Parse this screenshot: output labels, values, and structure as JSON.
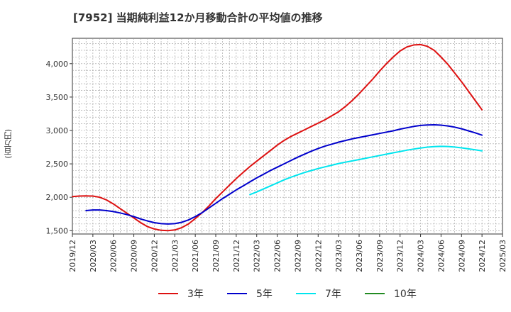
{
  "chart_data": {
    "type": "line",
    "title": "[7952]  当期純利益12か月移動合計の平均値の推移",
    "ylabel": "(百万円)",
    "xlabel": "",
    "ylim": [
      1450,
      4380
    ],
    "yticks": [
      1500,
      2000,
      2500,
      3000,
      3500,
      4000
    ],
    "ytick_labels": [
      "1,500",
      "2,000",
      "2,500",
      "3,000",
      "3,500",
      "4,000"
    ],
    "xlim": [
      "2019-12",
      "2025-03"
    ],
    "xtick_labels": [
      "2019/12",
      "2020/03",
      "2020/06",
      "2020/09",
      "2020/12",
      "2021/03",
      "2021/06",
      "2021/09",
      "2021/12",
      "2022/03",
      "2022/06",
      "2022/09",
      "2022/12",
      "2023/03",
      "2023/06",
      "2023/09",
      "2023/12",
      "2024/03",
      "2024/06",
      "2024/09",
      "2024/12",
      "2025/03"
    ],
    "grid": true,
    "legend_position": "bottom",
    "series": [
      {
        "name": "3年",
        "color": "#dd1111",
        "points": [
          [
            "2019-12",
            2010
          ],
          [
            "2020-01",
            2018
          ],
          [
            "2020-02",
            2020
          ],
          [
            "2020-03",
            2018
          ],
          [
            "2020-04",
            2000
          ],
          [
            "2020-05",
            1960
          ],
          [
            "2020-06",
            1900
          ],
          [
            "2020-07",
            1830
          ],
          [
            "2020-08",
            1760
          ],
          [
            "2020-09",
            1690
          ],
          [
            "2020-10",
            1620
          ],
          [
            "2020-11",
            1560
          ],
          [
            "2020-12",
            1525
          ],
          [
            "2021-01",
            1505
          ],
          [
            "2021-02",
            1500
          ],
          [
            "2021-03",
            1510
          ],
          [
            "2021-04",
            1545
          ],
          [
            "2021-05",
            1600
          ],
          [
            "2021-06",
            1680
          ],
          [
            "2021-07",
            1770
          ],
          [
            "2021-08",
            1870
          ],
          [
            "2021-09",
            1980
          ],
          [
            "2021-10",
            2080
          ],
          [
            "2021-11",
            2180
          ],
          [
            "2021-12",
            2280
          ],
          [
            "2022-01",
            2370
          ],
          [
            "2022-02",
            2460
          ],
          [
            "2022-03",
            2540
          ],
          [
            "2022-04",
            2620
          ],
          [
            "2022-05",
            2700
          ],
          [
            "2022-06",
            2780
          ],
          [
            "2022-07",
            2850
          ],
          [
            "2022-08",
            2910
          ],
          [
            "2022-09",
            2960
          ],
          [
            "2022-10",
            3010
          ],
          [
            "2022-11",
            3060
          ],
          [
            "2022-12",
            3110
          ],
          [
            "2023-01",
            3160
          ],
          [
            "2023-02",
            3220
          ],
          [
            "2023-03",
            3280
          ],
          [
            "2023-04",
            3360
          ],
          [
            "2023-05",
            3450
          ],
          [
            "2023-06",
            3550
          ],
          [
            "2023-07",
            3660
          ],
          [
            "2023-08",
            3770
          ],
          [
            "2023-09",
            3890
          ],
          [
            "2023-10",
            4000
          ],
          [
            "2023-11",
            4100
          ],
          [
            "2023-12",
            4190
          ],
          [
            "2024-01",
            4250
          ],
          [
            "2024-02",
            4280
          ],
          [
            "2024-03",
            4285
          ],
          [
            "2024-04",
            4260
          ],
          [
            "2024-05",
            4200
          ],
          [
            "2024-06",
            4100
          ],
          [
            "2024-07",
            3990
          ],
          [
            "2024-08",
            3860
          ],
          [
            "2024-09",
            3730
          ],
          [
            "2024-10",
            3590
          ],
          [
            "2024-11",
            3450
          ],
          [
            "2024-12",
            3310
          ]
        ]
      },
      {
        "name": "5年",
        "color": "#0000cc",
        "points": [
          [
            "2020-02",
            1800
          ],
          [
            "2020-03",
            1810
          ],
          [
            "2020-04",
            1810
          ],
          [
            "2020-05",
            1800
          ],
          [
            "2020-06",
            1785
          ],
          [
            "2020-07",
            1765
          ],
          [
            "2020-08",
            1740
          ],
          [
            "2020-09",
            1710
          ],
          [
            "2020-10",
            1675
          ],
          [
            "2020-11",
            1645
          ],
          [
            "2020-12",
            1620
          ],
          [
            "2021-01",
            1605
          ],
          [
            "2021-02",
            1600
          ],
          [
            "2021-03",
            1605
          ],
          [
            "2021-04",
            1625
          ],
          [
            "2021-05",
            1660
          ],
          [
            "2021-06",
            1710
          ],
          [
            "2021-07",
            1770
          ],
          [
            "2021-08",
            1840
          ],
          [
            "2021-09",
            1910
          ],
          [
            "2021-10",
            1980
          ],
          [
            "2021-11",
            2045
          ],
          [
            "2021-12",
            2110
          ],
          [
            "2022-01",
            2170
          ],
          [
            "2022-02",
            2230
          ],
          [
            "2022-03",
            2290
          ],
          [
            "2022-04",
            2345
          ],
          [
            "2022-05",
            2400
          ],
          [
            "2022-06",
            2450
          ],
          [
            "2022-07",
            2500
          ],
          [
            "2022-08",
            2550
          ],
          [
            "2022-09",
            2600
          ],
          [
            "2022-10",
            2645
          ],
          [
            "2022-11",
            2690
          ],
          [
            "2022-12",
            2730
          ],
          [
            "2023-01",
            2765
          ],
          [
            "2023-02",
            2795
          ],
          [
            "2023-03",
            2825
          ],
          [
            "2023-04",
            2850
          ],
          [
            "2023-05",
            2875
          ],
          [
            "2023-06",
            2895
          ],
          [
            "2023-07",
            2915
          ],
          [
            "2023-08",
            2935
          ],
          [
            "2023-09",
            2955
          ],
          [
            "2023-10",
            2975
          ],
          [
            "2023-11",
            2995
          ],
          [
            "2023-12",
            3020
          ],
          [
            "2024-01",
            3040
          ],
          [
            "2024-02",
            3060
          ],
          [
            "2024-03",
            3075
          ],
          [
            "2024-04",
            3083
          ],
          [
            "2024-05",
            3085
          ],
          [
            "2024-06",
            3080
          ],
          [
            "2024-07",
            3068
          ],
          [
            "2024-08",
            3050
          ],
          [
            "2024-09",
            3025
          ],
          [
            "2024-10",
            2995
          ],
          [
            "2024-11",
            2965
          ],
          [
            "2024-12",
            2930
          ]
        ]
      },
      {
        "name": "7年",
        "color": "#00e5ee",
        "points": [
          [
            "2022-02",
            2040
          ],
          [
            "2022-03",
            2080
          ],
          [
            "2022-04",
            2125
          ],
          [
            "2022-05",
            2170
          ],
          [
            "2022-06",
            2215
          ],
          [
            "2022-07",
            2260
          ],
          [
            "2022-08",
            2300
          ],
          [
            "2022-09",
            2335
          ],
          [
            "2022-10",
            2370
          ],
          [
            "2022-11",
            2400
          ],
          [
            "2022-12",
            2430
          ],
          [
            "2023-01",
            2455
          ],
          [
            "2023-02",
            2480
          ],
          [
            "2023-03",
            2505
          ],
          [
            "2023-04",
            2525
          ],
          [
            "2023-05",
            2545
          ],
          [
            "2023-06",
            2565
          ],
          [
            "2023-07",
            2585
          ],
          [
            "2023-08",
            2605
          ],
          [
            "2023-09",
            2625
          ],
          [
            "2023-10",
            2645
          ],
          [
            "2023-11",
            2665
          ],
          [
            "2023-12",
            2685
          ],
          [
            "2024-01",
            2705
          ],
          [
            "2024-02",
            2722
          ],
          [
            "2024-03",
            2738
          ],
          [
            "2024-04",
            2750
          ],
          [
            "2024-05",
            2758
          ],
          [
            "2024-06",
            2762
          ],
          [
            "2024-07",
            2760
          ],
          [
            "2024-08",
            2752
          ],
          [
            "2024-09",
            2740
          ],
          [
            "2024-10",
            2725
          ],
          [
            "2024-11",
            2710
          ],
          [
            "2024-12",
            2695
          ]
        ]
      },
      {
        "name": "10年",
        "color": "#228b22",
        "points": []
      }
    ]
  }
}
